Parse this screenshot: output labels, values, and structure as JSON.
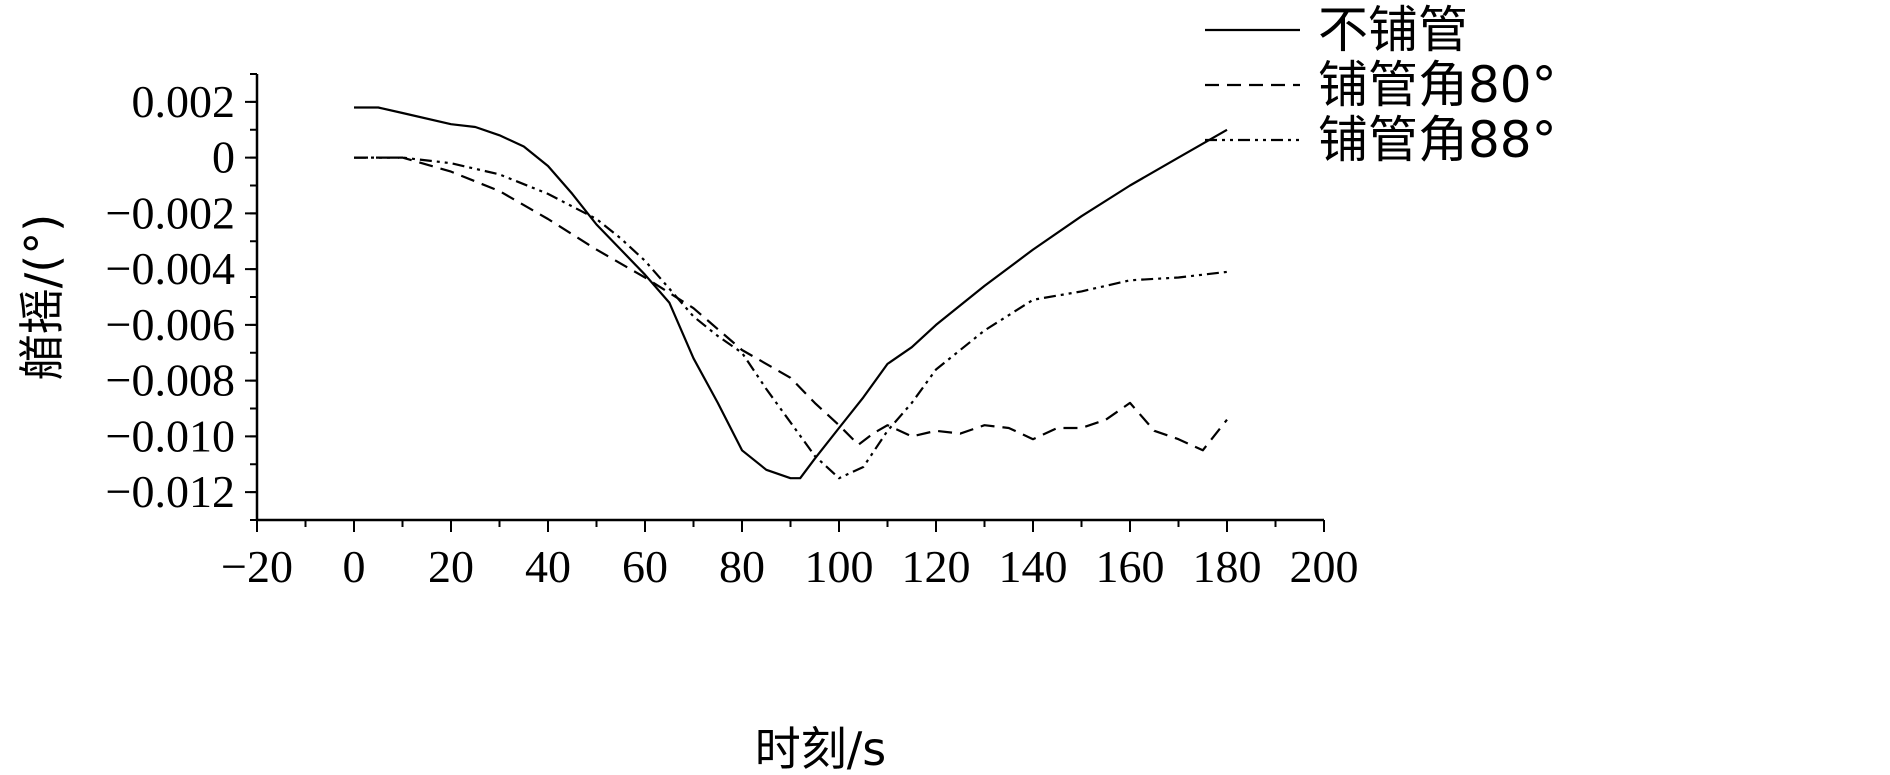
{
  "chart_data": {
    "type": "line",
    "xlabel": "时刻/s",
    "ylabel": "艏摇/(°)",
    "xlim": [
      -20,
      200
    ],
    "ylim": [
      -0.013,
      0.003
    ],
    "x_ticks": [
      "−20",
      "0",
      "20",
      "40",
      "60",
      "80",
      "100",
      "120",
      "140",
      "160",
      "180",
      "200"
    ],
    "x_tick_values": [
      -20,
      0,
      20,
      40,
      60,
      80,
      100,
      120,
      140,
      160,
      180,
      200
    ],
    "y_ticks": [
      "0.002",
      "0",
      "−0.002",
      "−0.004",
      "−0.006",
      "−0.008",
      "−0.010",
      "−0.012"
    ],
    "y_tick_values": [
      0.002,
      0,
      -0.002,
      -0.004,
      -0.006,
      -0.008,
      -0.01,
      -0.012
    ],
    "legend_position": "top-right",
    "series": [
      {
        "name": "不铺管",
        "style": "solid",
        "x": [
          0,
          5,
          10,
          20,
          25,
          30,
          35,
          40,
          45,
          50,
          55,
          60,
          65,
          70,
          75,
          80,
          85,
          90,
          92,
          95,
          100,
          105,
          110,
          115,
          120,
          130,
          140,
          150,
          160,
          170,
          180
        ],
        "y": [
          0.0018,
          0.0018,
          0.0016,
          0.0012,
          0.0011,
          0.0008,
          0.0004,
          -0.0003,
          -0.0013,
          -0.0024,
          -0.0033,
          -0.0042,
          -0.0052,
          -0.0072,
          -0.0088,
          -0.0105,
          -0.0112,
          -0.0115,
          -0.0115,
          -0.0108,
          -0.0097,
          -0.0086,
          -0.0074,
          -0.0068,
          -0.006,
          -0.0046,
          -0.0033,
          -0.0021,
          -0.001,
          0.0,
          0.001
        ]
      },
      {
        "name": "铺管角80°",
        "style": "dashed",
        "x": [
          0,
          10,
          20,
          30,
          40,
          50,
          60,
          70,
          80,
          90,
          95,
          100,
          104,
          107,
          110,
          115,
          120,
          125,
          130,
          135,
          140,
          145,
          150,
          155,
          160,
          165,
          170,
          175,
          180
        ],
        "y": [
          0.0,
          0.0,
          -0.0005,
          -0.0012,
          -0.0022,
          -0.0033,
          -0.0043,
          -0.0054,
          -0.0069,
          -0.0079,
          -0.0088,
          -0.0096,
          -0.0103,
          -0.0099,
          -0.0096,
          -0.01,
          -0.0098,
          -0.0099,
          -0.0096,
          -0.0097,
          -0.0101,
          -0.0097,
          -0.0097,
          -0.0094,
          -0.0088,
          -0.0098,
          -0.0101,
          -0.0105,
          -0.0094
        ]
      },
      {
        "name": "铺管角88°",
        "style": "dashdotdot",
        "x": [
          0,
          10,
          20,
          30,
          40,
          50,
          55,
          60,
          65,
          70,
          75,
          80,
          85,
          90,
          95,
          100,
          105,
          110,
          115,
          120,
          130,
          140,
          150,
          160,
          170,
          180
        ],
        "y": [
          0.0,
          0.0,
          -0.0002,
          -0.0006,
          -0.0013,
          -0.0022,
          -0.0029,
          -0.0037,
          -0.0047,
          -0.0057,
          -0.0064,
          -0.007,
          -0.0083,
          -0.0095,
          -0.0107,
          -0.0115,
          -0.0111,
          -0.0098,
          -0.0088,
          -0.0076,
          -0.0062,
          -0.0051,
          -0.0048,
          -0.0044,
          -0.0043,
          -0.0041
        ]
      }
    ]
  }
}
